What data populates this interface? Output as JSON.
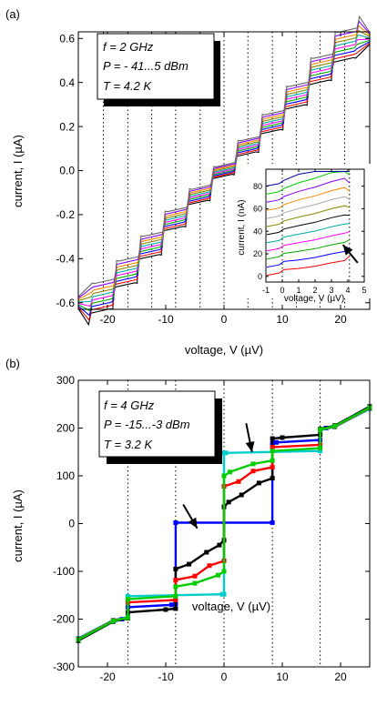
{
  "chart_data": [
    {
      "type": "line",
      "panel_label": "(a)",
      "xlabel": "voltage, V (µV)",
      "ylabel": "current, I (µA)",
      "xlim": [
        -25,
        25
      ],
      "ylim": [
        -0.63,
        0.63
      ],
      "xticks": [
        -20,
        -10,
        0,
        10,
        20
      ],
      "xtick_labels": [
        "-20",
        "-10",
        "0",
        "10",
        "20"
      ],
      "yticks": [
        -0.6,
        -0.4,
        -0.2,
        0.0,
        0.2,
        0.4,
        0.6
      ],
      "ytick_labels": [
        "-0.6",
        "-0.4",
        "-0.2",
        "0.0",
        "0.2",
        "0.4",
        "0.6"
      ],
      "vlines": [
        -20.7,
        -16.5,
        -12.4,
        -8.3,
        -4.1,
        0,
        4.1,
        8.3,
        12.4,
        16.5,
        20.7
      ],
      "annotation_lines": [
        "f = 2 GHz",
        "P = - 41...5 dBm",
        "T = 4.2 K"
      ],
      "step_levels": [
        -0.57,
        -0.46,
        -0.34,
        -0.22,
        -0.11,
        0.0,
        0.11,
        0.22,
        0.34,
        0.46,
        0.57
      ],
      "series_colors": [
        "#000000",
        "#ff0000",
        "#0000ff",
        "#00aa00",
        "#ff00ff",
        "#00aaaa",
        "#888800",
        "#ff8800",
        "#8800ff",
        "#666666"
      ],
      "inset": {
        "xlabel": "voltage, V (µV)",
        "ylabel": "current, I (nA)",
        "xlim": [
          -1,
          5
        ],
        "ylim": [
          -5,
          95
        ],
        "xticks": [
          -1,
          0,
          1,
          2,
          3,
          4,
          5
        ],
        "xtick_labels": [
          "-1",
          "0",
          "1",
          "2",
          "3",
          "4",
          "5"
        ],
        "yticks": [
          0,
          20,
          40,
          60,
          80
        ],
        "ytick_labels": [
          "0",
          "20",
          "40",
          "60",
          "80"
        ],
        "vlines": [
          0,
          4.1
        ],
        "arrow": {
          "from": [
            4.6,
            12
          ],
          "to": [
            3.7,
            28
          ]
        }
      }
    },
    {
      "type": "line",
      "panel_label": "(b)",
      "xlabel": "voltage, V (µV)",
      "ylabel": "current, I (µA)",
      "xlim": [
        -25,
        25
      ],
      "ylim": [
        -300,
        300
      ],
      "xticks": [
        -20,
        -10,
        0,
        10,
        20
      ],
      "xtick_labels": [
        "-20",
        "-10",
        "0",
        "10",
        "20"
      ],
      "yticks": [
        -300,
        -200,
        -100,
        0,
        100,
        200,
        300
      ],
      "ytick_labels": [
        "-300",
        "-200",
        "-100",
        "0",
        "100",
        "200",
        "300"
      ],
      "vlines": [
        -16.5,
        -8.3,
        0,
        8.3,
        16.5
      ],
      "annotation_lines": [
        "f = 4 GHz",
        "P = -15...-3 dBm",
        "T = 3.2 K"
      ],
      "arrows": [
        {
          "from": [
            -7.0,
            40
          ],
          "to": [
            -4.6,
            -10
          ]
        },
        {
          "from": [
            3.8,
            210
          ],
          "to": [
            4.8,
            150
          ]
        }
      ],
      "series": [
        {
          "color": "#0000ff",
          "x": [
            -25,
            -19,
            -17.5,
            -16.5,
            -16.5,
            -9,
            -8.3,
            -8.3,
            8.3,
            8.3,
            9,
            16.5,
            16.5,
            17.5,
            19,
            25
          ],
          "y": [
            -245,
            -205,
            -200,
            -196,
            -175,
            -170,
            -168,
            2,
            2,
            168,
            170,
            175,
            196,
            200,
            205,
            245
          ]
        },
        {
          "color": "#00cccc",
          "x": [
            -25,
            -19,
            -16.5,
            -16.5,
            -0.3,
            0,
            0,
            0.3,
            16.5,
            16.5,
            19,
            25
          ],
          "y": [
            -240,
            -202,
            -196,
            -152,
            -148,
            -148,
            148,
            148,
            152,
            196,
            202,
            240
          ]
        },
        {
          "color": "#000000",
          "x": [
            -25,
            -19,
            -16.5,
            -16.5,
            -10,
            -8.3,
            -8.3,
            -6,
            -3,
            -0.8,
            0,
            0,
            0.8,
            3,
            6,
            8.3,
            8.3,
            10,
            16.5,
            16.5,
            19,
            25
          ],
          "y": [
            -245,
            -205,
            -198,
            -186,
            -180,
            -178,
            -95,
            -85,
            -60,
            -45,
            -35,
            35,
            45,
            60,
            85,
            95,
            178,
            180,
            186,
            198,
            205,
            245
          ]
        },
        {
          "color": "#ff0000",
          "x": [
            -25,
            -19,
            -16.5,
            -16.5,
            -8.3,
            -8.3,
            -5,
            -2.5,
            0,
            0,
            2.5,
            5,
            8.3,
            8.3,
            16.5,
            16.5,
            19,
            25
          ],
          "y": [
            -242,
            -203,
            -197,
            -165,
            -160,
            -118,
            -110,
            -88,
            -78,
            78,
            88,
            110,
            118,
            160,
            165,
            197,
            203,
            242
          ]
        },
        {
          "color": "#00cc00",
          "x": [
            -25,
            -19,
            -16.5,
            -16.5,
            -8.3,
            -8.3,
            -5,
            -1,
            0,
            0,
            1,
            5,
            8.3,
            8.3,
            16.5,
            16.5,
            19,
            25
          ],
          "y": [
            -243,
            -204,
            -197,
            -158,
            -152,
            -132,
            -125,
            -108,
            -100,
            100,
            108,
            125,
            132,
            152,
            158,
            197,
            204,
            243
          ]
        }
      ]
    }
  ]
}
